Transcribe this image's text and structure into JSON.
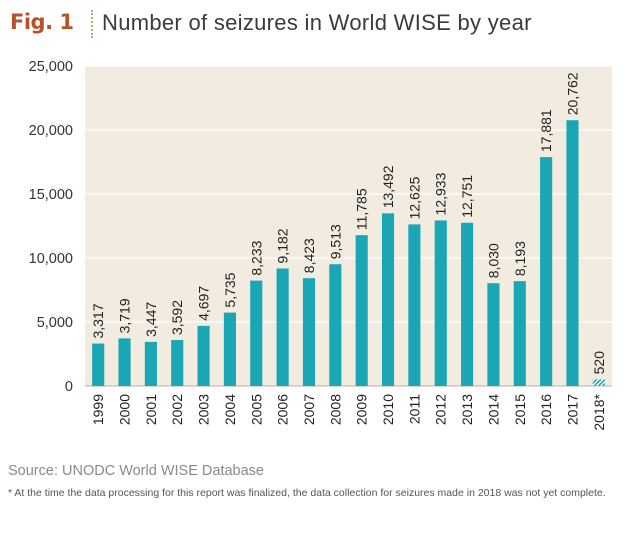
{
  "figure": {
    "label": "Fig. 1",
    "title": "Number of seizures in World WISE by year"
  },
  "source": "Source: UNODC World WISE Database",
  "footnote": "* At the time the data processing for this report was finalized, the data collection for seizures made in 2018 was not yet complete.",
  "colors": {
    "bar": "#1ba6b6",
    "plot_background": "#f1ebe0",
    "accent": "#b5532b"
  },
  "chart_data": {
    "type": "bar",
    "title": "Number of seizures in World WISE by year",
    "xlabel": "",
    "ylabel": "",
    "ylim": [
      0,
      25000
    ],
    "yticks": [
      "0",
      "5,000",
      "10,000",
      "15,000",
      "20,000",
      "25,000"
    ],
    "grid": true,
    "legend": "none",
    "categories": [
      "1999",
      "2000",
      "2001",
      "2002",
      "2003",
      "2004",
      "2005",
      "2006",
      "2007",
      "2008",
      "2009",
      "2010",
      "2011",
      "2012",
      "2013",
      "2014",
      "2015",
      "2016",
      "2017",
      "2018*"
    ],
    "values": [
      3317,
      3719,
      3447,
      3592,
      4697,
      5735,
      8233,
      9182,
      8423,
      9513,
      11785,
      13492,
      12625,
      12933,
      12751,
      8030,
      8193,
      17881,
      20762,
      520
    ],
    "value_labels": [
      "3,317",
      "3,719",
      "3,447",
      "3,592",
      "4,697",
      "5,735",
      "8,233",
      "9,182",
      "8,423",
      "9,513",
      "11,785",
      "13,492",
      "12,625",
      "12,933",
      "12,751",
      "8,030",
      "8,193",
      "17,881",
      "20,762",
      "520"
    ],
    "hatched_categories": [
      "2018*"
    ]
  }
}
